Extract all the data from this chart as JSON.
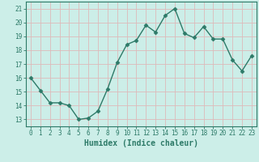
{
  "x": [
    0,
    1,
    2,
    3,
    4,
    5,
    6,
    7,
    8,
    9,
    10,
    11,
    12,
    13,
    14,
    15,
    16,
    17,
    18,
    19,
    20,
    21,
    22,
    23
  ],
  "y": [
    16.0,
    15.1,
    14.2,
    14.2,
    14.0,
    13.0,
    13.1,
    13.6,
    15.2,
    17.1,
    18.4,
    18.7,
    19.8,
    19.3,
    20.5,
    21.0,
    19.2,
    18.9,
    19.7,
    18.8,
    18.8,
    17.3,
    16.5,
    17.6
  ],
  "line_color": "#2d7a68",
  "marker": "D",
  "markersize": 2.5,
  "linewidth": 1.0,
  "bg_color": "#cceee8",
  "grid_color": "#ddbaba",
  "xlabel": "Humidex (Indice chaleur)",
  "xlabel_fontsize": 7,
  "yticks": [
    13,
    14,
    15,
    16,
    17,
    18,
    19,
    20,
    21
  ],
  "xticks": [
    0,
    1,
    2,
    3,
    4,
    5,
    6,
    7,
    8,
    9,
    10,
    11,
    12,
    13,
    14,
    15,
    16,
    17,
    18,
    19,
    20,
    21,
    22,
    23
  ],
  "ylim": [
    12.5,
    21.5
  ],
  "xlim": [
    -0.5,
    23.5
  ],
  "tick_color": "#2d7a68",
  "tick_fontsize": 5.5,
  "spine_color": "#2d7a68"
}
